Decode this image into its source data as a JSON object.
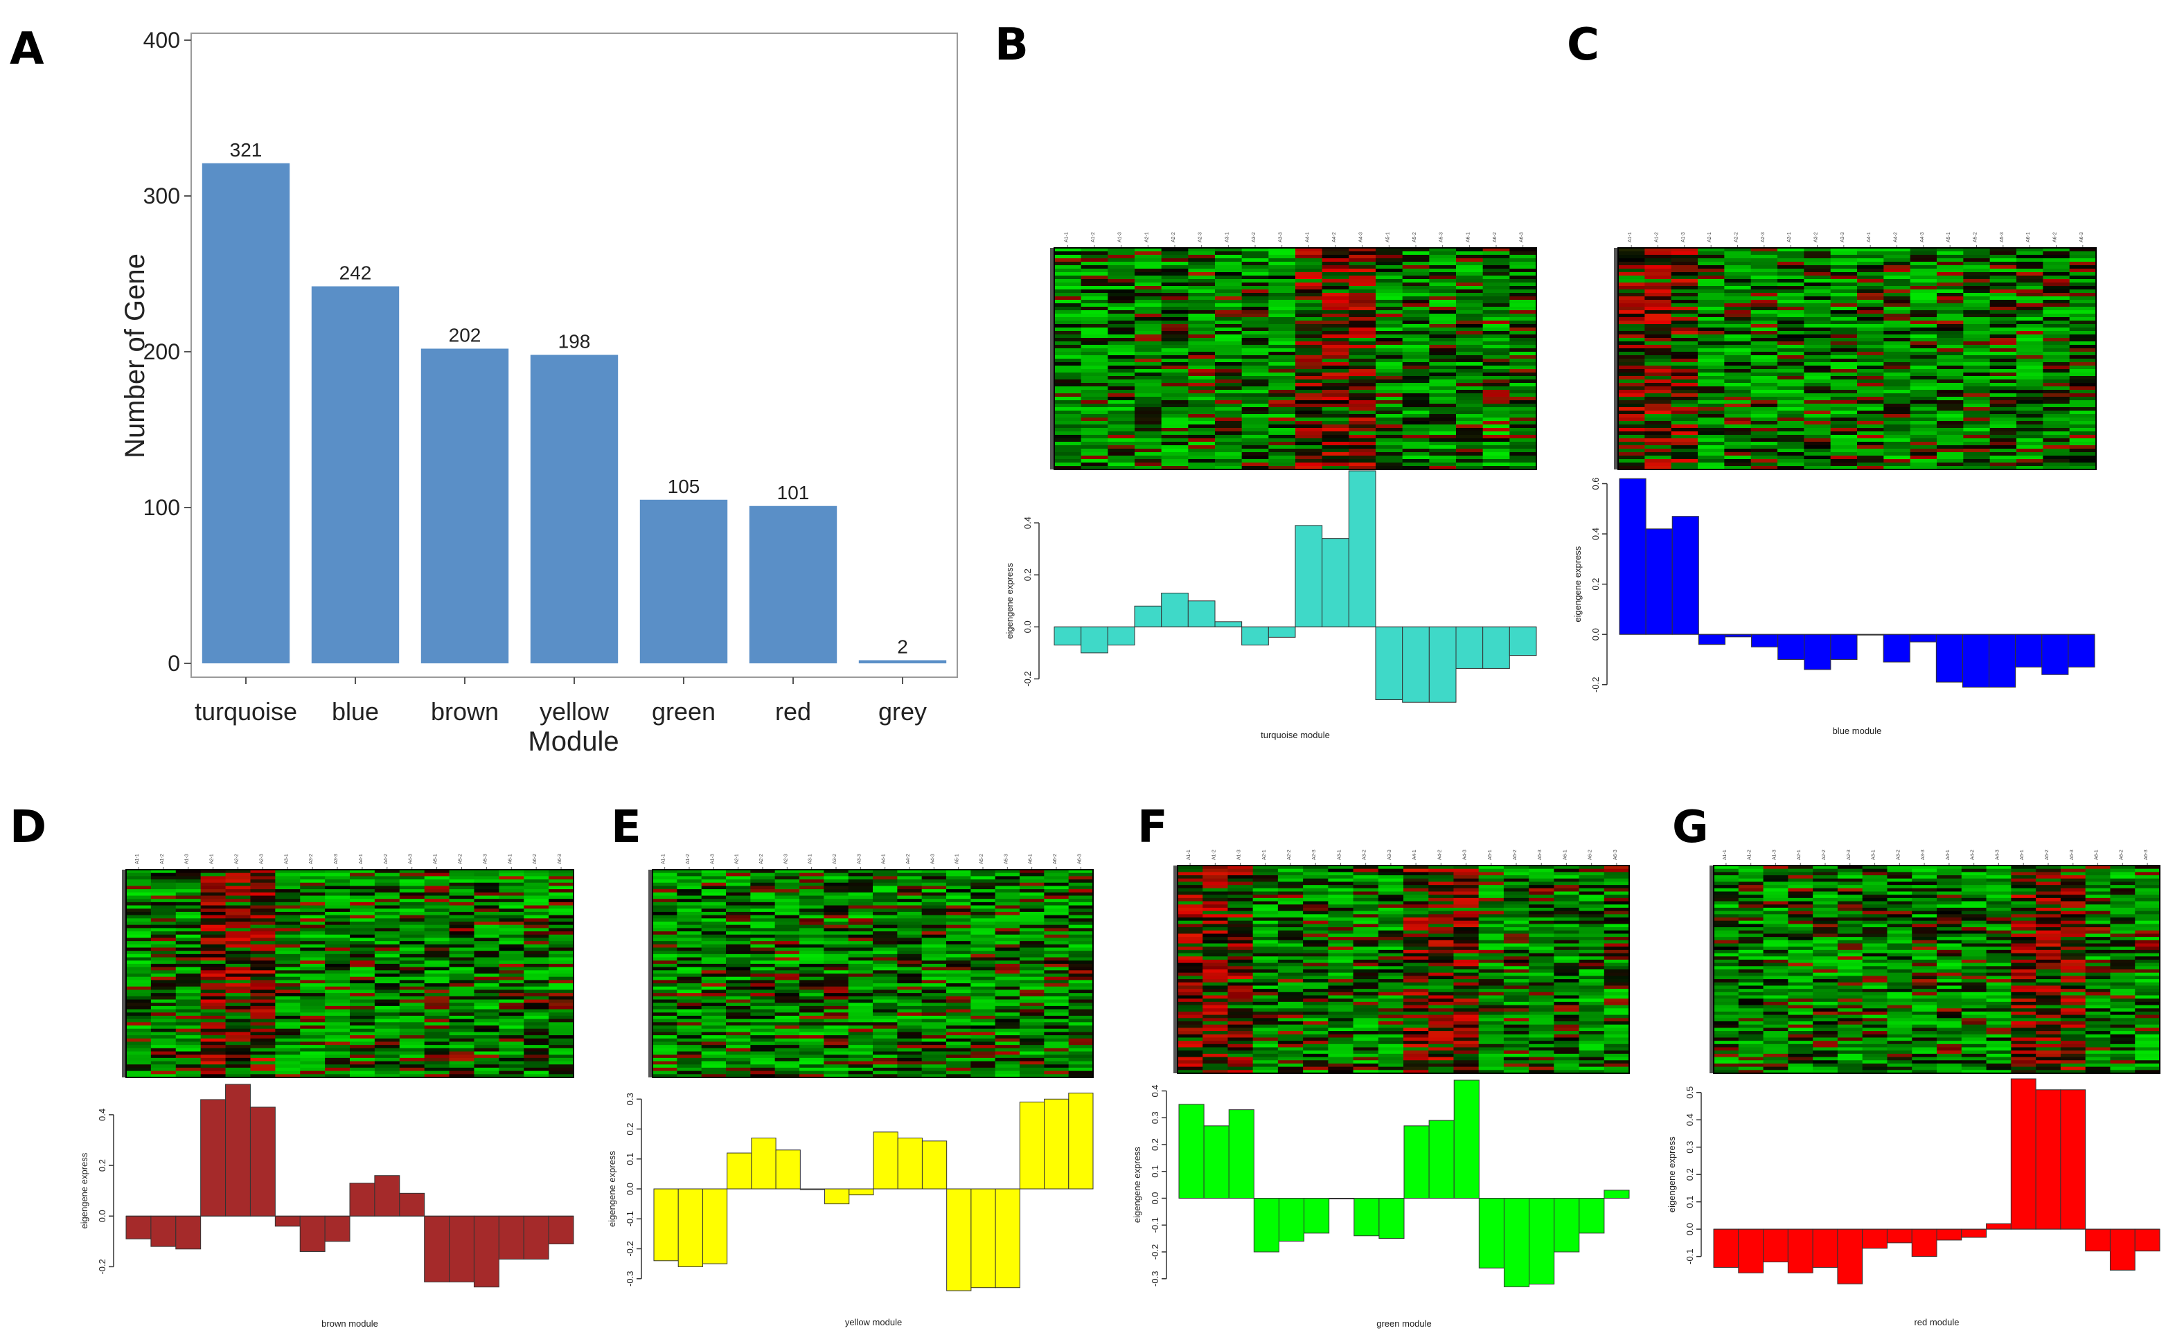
{
  "panel_labels": [
    "A",
    "B",
    "C",
    "D",
    "E",
    "F",
    "G"
  ],
  "chart_data": [
    {
      "panel": "A",
      "type": "bar",
      "xlabel": "Module",
      "ylabel": "Number of Gene",
      "ylim": [
        0,
        400
      ],
      "yticks": [
        0,
        100,
        200,
        300,
        400
      ],
      "color": "#5a8fc7",
      "categories": [
        "turquoise",
        "blue",
        "brown",
        "yellow",
        "green",
        "red",
        "grey"
      ],
      "values": [
        321,
        242,
        202,
        198,
        105,
        101,
        2
      ],
      "labels": [
        "321",
        "242",
        "202",
        "198",
        "105",
        "101",
        "2"
      ]
    },
    {
      "panel": "B",
      "type": "heatmap+bar",
      "module_label": "turquoise module",
      "ylabel": "eigengene express",
      "color": "#3fd9c8",
      "yticks": [
        "0.4",
        "0.2",
        "0.0",
        "-0.2"
      ],
      "ylim": [
        -0.3,
        0.6
      ],
      "values": [
        -0.07,
        -0.1,
        -0.07,
        0.08,
        0.13,
        0.1,
        0.02,
        -0.07,
        -0.04,
        0.39,
        0.34,
        0.6,
        -0.28,
        -0.29,
        -0.29,
        -0.16,
        -0.16,
        -0.11
      ],
      "samples": [
        "A1-1",
        "A1-2",
        "A1-3",
        "A2-1",
        "A2-2",
        "A2-3",
        "A3-1",
        "A3-2",
        "A3-3",
        "A4-1",
        "A4-2",
        "A4-3",
        "A5-1",
        "A5-2",
        "A5-3",
        "A6-1",
        "A6-2",
        "A6-3"
      ],
      "hot_cols": [
        9,
        10,
        11
      ]
    },
    {
      "panel": "C",
      "type": "heatmap+bar",
      "module_label": "blue module",
      "ylabel": "eigengene express",
      "color": "#0000ff",
      "yticks": [
        "0.6",
        "0.4",
        "0.2",
        "0.0",
        "-0.2"
      ],
      "ylim": [
        -0.22,
        0.64
      ],
      "values": [
        0.62,
        0.42,
        0.47,
        -0.04,
        -0.01,
        -0.05,
        -0.1,
        -0.14,
        -0.1,
        0.0,
        -0.11,
        -0.03,
        -0.19,
        -0.21,
        -0.21,
        -0.13,
        -0.16,
        -0.13
      ],
      "samples": [
        "A1-1",
        "A1-2",
        "A1-3",
        "A2-1",
        "A2-2",
        "A2-3",
        "A3-1",
        "A3-2",
        "A3-3",
        "A4-1",
        "A4-2",
        "A4-3",
        "A5-1",
        "A5-2",
        "A5-3",
        "A6-1",
        "A6-2",
        "A6-3"
      ],
      "hot_cols": [
        0,
        1,
        2
      ]
    },
    {
      "panel": "D",
      "type": "heatmap+bar",
      "module_label": "brown module",
      "ylabel": "eigengene express",
      "color": "#a52a2a",
      "yticks": [
        "0.4",
        "0.2",
        "0.0",
        "-0.2"
      ],
      "ylim": [
        -0.3,
        0.52
      ],
      "values": [
        -0.09,
        -0.12,
        -0.13,
        0.46,
        0.52,
        0.43,
        -0.04,
        -0.14,
        -0.1,
        0.13,
        0.16,
        0.09,
        -0.26,
        -0.26,
        -0.28,
        -0.17,
        -0.17,
        -0.11
      ],
      "samples": [
        "A1-1",
        "A1-2",
        "A1-3",
        "A2-1",
        "A2-2",
        "A2-3",
        "A3-1",
        "A3-2",
        "A3-3",
        "A4-1",
        "A4-2",
        "A4-3",
        "A5-1",
        "A5-2",
        "A5-3",
        "A6-1",
        "A6-2",
        "A6-3"
      ],
      "hot_cols": [
        3,
        4,
        5
      ]
    },
    {
      "panel": "E",
      "type": "heatmap+bar",
      "module_label": "yellow module",
      "ylabel": "eigengene express",
      "color": "#ffff00",
      "yticks": [
        "0.3",
        "0.2",
        "0.1",
        "0.0",
        "-0.1",
        "-0.2",
        "-0.3"
      ],
      "ylim": [
        -0.34,
        0.34
      ],
      "values": [
        -0.24,
        -0.26,
        -0.25,
        0.12,
        0.17,
        0.13,
        0.0,
        -0.05,
        -0.02,
        0.19,
        0.17,
        0.16,
        -0.34,
        -0.33,
        -0.33,
        0.29,
        0.3,
        0.32
      ],
      "samples": [
        "A1-1",
        "A1-2",
        "A1-3",
        "A2-1",
        "A2-2",
        "A2-3",
        "A3-1",
        "A3-2",
        "A3-3",
        "A4-1",
        "A4-2",
        "A4-3",
        "A5-1",
        "A5-2",
        "A5-3",
        "A6-1",
        "A6-2",
        "A6-3"
      ],
      "hot_cols": []
    },
    {
      "panel": "F",
      "type": "heatmap+bar",
      "module_label": "green module",
      "ylabel": "eigengene express",
      "color": "#00ff00",
      "yticks": [
        "0.4",
        "0.3",
        "0.2",
        "0.1",
        "0.0",
        "-0.1",
        "-0.2",
        "-0.3"
      ],
      "ylim": [
        -0.36,
        0.44
      ],
      "values": [
        0.35,
        0.27,
        0.33,
        -0.2,
        -0.16,
        -0.13,
        0.0,
        -0.14,
        -0.15,
        0.27,
        0.29,
        0.44,
        -0.26,
        -0.33,
        -0.32,
        -0.2,
        -0.13,
        0.03
      ],
      "samples": [
        "A1-1",
        "A1-2",
        "A1-3",
        "A2-1",
        "A2-2",
        "A2-3",
        "A3-1",
        "A3-2",
        "A3-3",
        "A4-1",
        "A4-2",
        "A4-3",
        "A5-1",
        "A5-2",
        "A5-3",
        "A6-1",
        "A6-2",
        "A6-3"
      ],
      "hot_cols": [
        0,
        1,
        2,
        9,
        10,
        11
      ]
    },
    {
      "panel": "G",
      "type": "heatmap+bar",
      "module_label": "red module",
      "ylabel": "eigengene express",
      "color": "#ff0000",
      "yticks": [
        "0.5",
        "0.4",
        "0.3",
        "0.2",
        "0.1",
        "0.0",
        "-0.1"
      ],
      "ylim": [
        -0.22,
        0.55
      ],
      "values": [
        -0.14,
        -0.16,
        -0.12,
        -0.16,
        -0.14,
        -0.2,
        -0.07,
        -0.05,
        -0.1,
        -0.04,
        -0.03,
        0.02,
        0.55,
        0.51,
        0.51,
        -0.08,
        -0.15,
        -0.08
      ],
      "samples": [
        "A1-1",
        "A1-2",
        "A1-3",
        "A2-1",
        "A2-2",
        "A2-3",
        "A3-1",
        "A3-2",
        "A3-3",
        "A4-1",
        "A4-2",
        "A4-3",
        "A5-1",
        "A5-2",
        "A5-3",
        "A6-1",
        "A6-2",
        "A6-3"
      ],
      "hot_cols": [
        12,
        13,
        14
      ]
    }
  ]
}
